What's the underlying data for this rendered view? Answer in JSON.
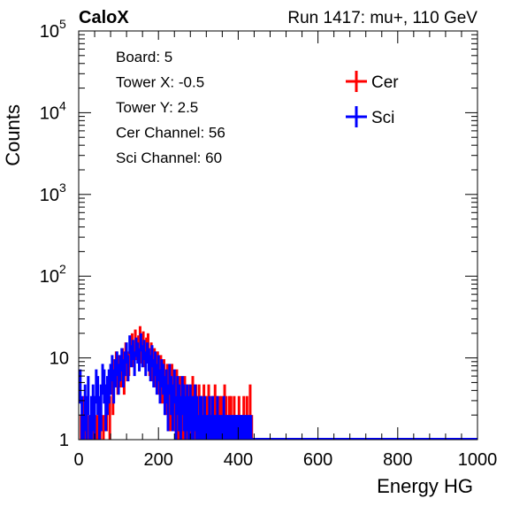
{
  "chart_data": {
    "type": "histogram",
    "title_left": "CaloX",
    "title_right": "Run 1417: mu+, 110 GeV",
    "xlabel": "Energy HG",
    "ylabel": "Counts",
    "xlim": [
      0,
      1000
    ],
    "ylim": [
      1,
      100000
    ],
    "y_scale": "log",
    "x_ticks": [
      "0",
      "200",
      "400",
      "600",
      "800",
      "1000"
    ],
    "y_ticks": [
      {
        "base": "1",
        "exp": ""
      },
      {
        "base": "10",
        "exp": ""
      },
      {
        "base": "10",
        "exp": "2"
      },
      {
        "base": "10",
        "exp": "3"
      },
      {
        "base": "10",
        "exp": "4"
      },
      {
        "base": "10",
        "exp": "5"
      }
    ],
    "info_box": [
      "Board: 5",
      "Tower X: -0.5",
      "Tower Y: 2.5",
      "Cer Channel: 56",
      "Sci Channel: 60"
    ],
    "legend_placement": "top-right",
    "grid": false,
    "series": [
      {
        "name": "Cer",
        "color": "#ff0000",
        "x": [
          6,
          14,
          22,
          30,
          38,
          46,
          54,
          62,
          70,
          78,
          86,
          90,
          94,
          98,
          102,
          106,
          110,
          114,
          118,
          122,
          126,
          130,
          134,
          138,
          142,
          146,
          150,
          154,
          158,
          162,
          166,
          170,
          174,
          178,
          182,
          186,
          190,
          194,
          198,
          202,
          206,
          210,
          214,
          218,
          222,
          226,
          230,
          234,
          238,
          242,
          246,
          250,
          254,
          258,
          262,
          266,
          270,
          274,
          278,
          282,
          286,
          290,
          294,
          298,
          302,
          306,
          310,
          314,
          318,
          322,
          326,
          330,
          334,
          338,
          342,
          346,
          350,
          354,
          358,
          362,
          366,
          370,
          374,
          378,
          382,
          386,
          390,
          394,
          398,
          402,
          406,
          410,
          414,
          418,
          422,
          426,
          430,
          434
        ],
        "y": [
          1,
          2,
          1,
          1,
          2,
          1,
          1,
          1,
          3,
          2,
          4,
          7,
          9,
          6,
          8,
          7,
          10,
          6,
          12,
          8,
          9,
          14,
          16,
          11,
          18,
          13,
          15,
          20,
          12,
          17,
          11,
          14,
          16,
          9,
          12,
          8,
          10,
          7,
          9,
          6,
          8,
          5,
          7,
          4,
          6,
          5,
          3,
          6,
          4,
          3,
          5,
          2,
          4,
          3,
          2,
          4,
          3,
          2,
          3,
          2,
          4,
          2,
          3,
          2,
          3,
          2,
          2,
          3,
          2,
          2,
          3,
          1,
          2,
          2,
          3,
          2,
          1,
          2,
          2,
          1,
          3,
          2,
          1,
          2,
          2,
          1,
          2,
          1,
          1,
          2,
          1,
          1,
          2,
          1,
          2,
          1,
          3,
          1
        ]
      },
      {
        "name": "Sci",
        "color": "#0000ff",
        "x": [
          4,
          8,
          12,
          16,
          20,
          24,
          28,
          32,
          36,
          40,
          44,
          48,
          52,
          56,
          60,
          64,
          68,
          72,
          76,
          80,
          84,
          88,
          92,
          96,
          100,
          104,
          108,
          112,
          116,
          120,
          124,
          128,
          132,
          136,
          140,
          144,
          148,
          152,
          156,
          160,
          164,
          168,
          172,
          176,
          180,
          184,
          188,
          192,
          196,
          200,
          204,
          208,
          212,
          216,
          220,
          224,
          228,
          232,
          236,
          240,
          244,
          248,
          252,
          256,
          260,
          264,
          268,
          272,
          276,
          280,
          284,
          288,
          292,
          296,
          300,
          304,
          308,
          312,
          316,
          320,
          324,
          328,
          332,
          336,
          340,
          344,
          348,
          352,
          356,
          360,
          364,
          368,
          372,
          376,
          380,
          384,
          388,
          392,
          396,
          400,
          404,
          408,
          412,
          416,
          420,
          424,
          428,
          432
        ],
        "y": [
          5,
          2,
          1,
          3,
          2,
          4,
          1,
          2,
          3,
          2,
          5,
          4,
          2,
          3,
          6,
          5,
          3,
          4,
          5,
          6,
          8,
          5,
          7,
          9,
          6,
          8,
          10,
          7,
          9,
          12,
          8,
          15,
          11,
          13,
          9,
          14,
          12,
          10,
          16,
          11,
          13,
          9,
          12,
          10,
          8,
          11,
          7,
          9,
          6,
          8,
          5,
          7,
          6,
          4,
          5,
          3,
          6,
          4,
          3,
          5,
          2,
          4,
          3,
          2,
          4,
          3,
          2,
          3,
          2,
          3,
          2,
          2,
          3,
          2,
          1,
          2,
          2,
          1,
          2,
          1,
          1,
          2,
          1,
          2,
          1,
          1,
          2,
          1,
          1,
          1,
          2,
          1,
          1,
          1,
          1,
          1,
          1,
          1,
          1,
          1,
          1,
          1,
          1,
          1,
          1,
          1,
          1,
          1
        ]
      }
    ]
  }
}
